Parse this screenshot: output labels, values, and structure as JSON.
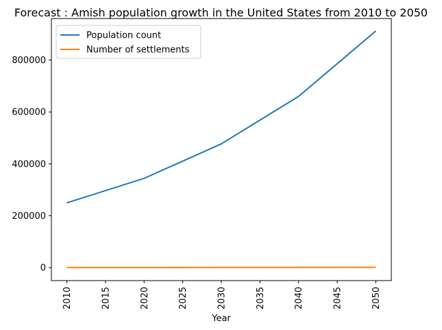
{
  "chart_data": {
    "type": "line",
    "title": "Forecast : Amish population growth in the United States from 2010 to 2050",
    "xlabel": "Year",
    "ylabel": "",
    "x": [
      2010,
      2020,
      2030,
      2040,
      2050
    ],
    "xticks": [
      "2010",
      "2015",
      "2020",
      "2025",
      "2030",
      "2035",
      "2040",
      "2045",
      "2050"
    ],
    "xlim": [
      2008,
      2052
    ],
    "yticks": [
      "0",
      "200000",
      "400000",
      "600000",
      "800000"
    ],
    "ylim": [
      -50000,
      960000
    ],
    "grid": false,
    "legend_position": "top-left",
    "series": [
      {
        "name": "Population count",
        "color": "#1f77b4",
        "values": [
          249500,
          344000,
          477000,
          660000,
          912000
        ]
      },
      {
        "name": "Number of settlements",
        "color": "#ff7f0e",
        "values": [
          460,
          600,
          780,
          1020,
          1340
        ]
      }
    ]
  }
}
